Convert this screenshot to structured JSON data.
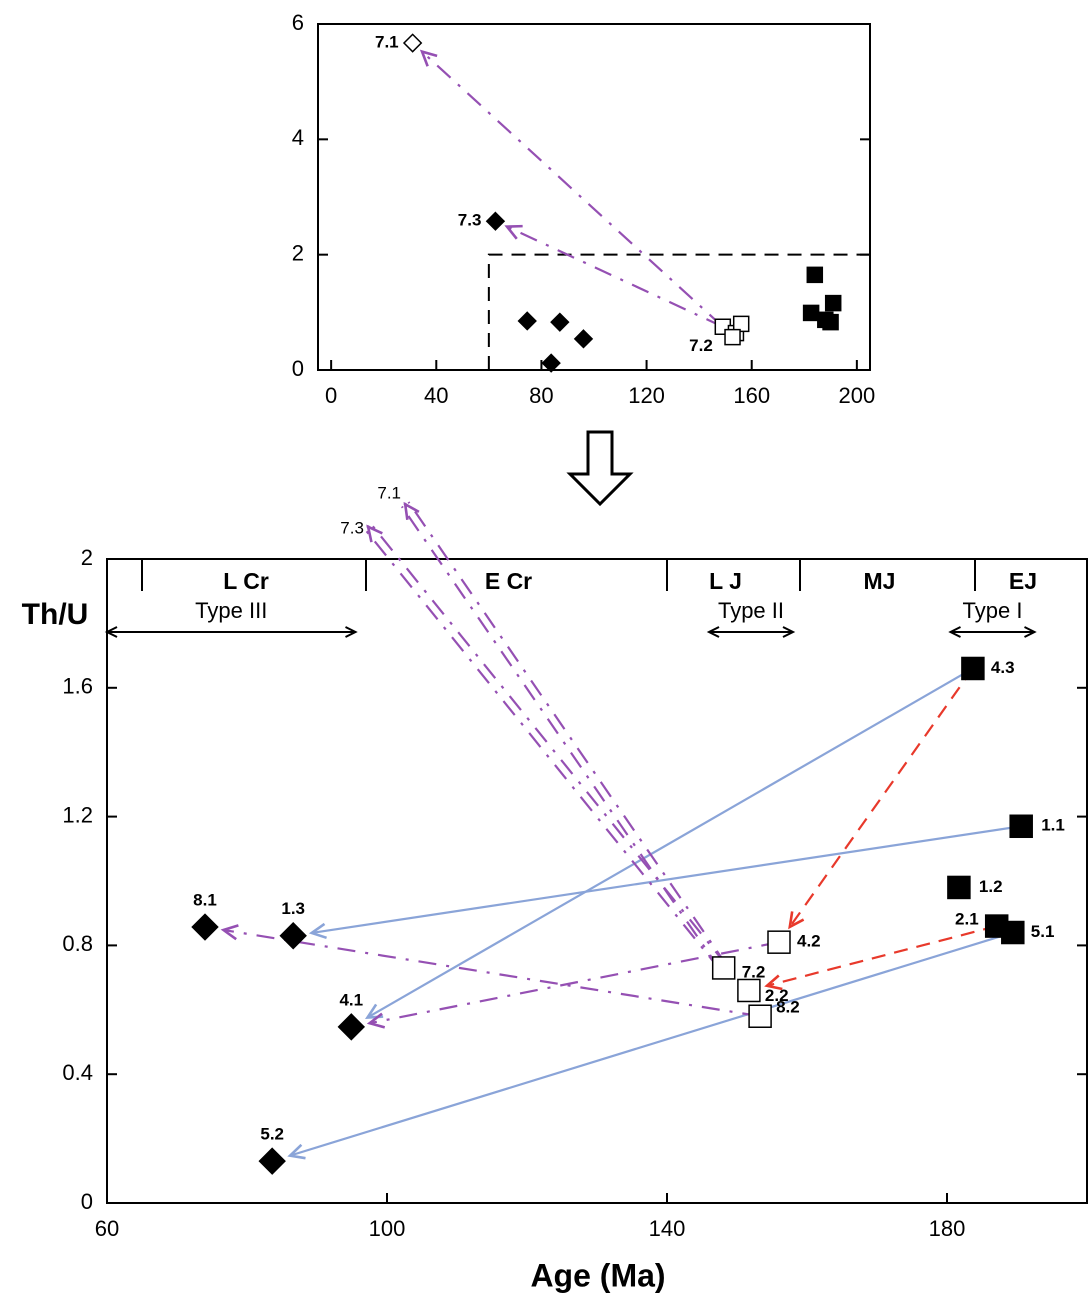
{
  "chart_data": [
    {
      "type": "scatter",
      "xlim": [
        -5,
        205
      ],
      "ylim": [
        0,
        6
      ],
      "xticks": [
        0,
        40,
        80,
        120,
        160,
        200
      ],
      "yticks": [
        0,
        2,
        4,
        6
      ],
      "region": {
        "x": 60,
        "y": 2
      },
      "series": [
        {
          "marker": "diamond",
          "filled": true,
          "x": [
            74.6,
            87,
            96,
            83.7,
            62.5
          ],
          "y": [
            0.85,
            0.83,
            0.54,
            0.12,
            2.58
          ],
          "labels": [
            null,
            null,
            null,
            null,
            "7.3"
          ]
        },
        {
          "marker": "diamond",
          "filled": false,
          "x": [
            31
          ],
          "y": [
            5.67
          ],
          "labels": [
            "7.1"
          ]
        },
        {
          "marker": "square",
          "filled": false,
          "x": [
            149,
            154,
            156,
            152.7
          ],
          "y": [
            0.75,
            0.64,
            0.8,
            0.57
          ],
          "labels": [
            "7.2",
            null,
            null,
            null
          ]
        },
        {
          "marker": "square",
          "filled": true,
          "x": [
            184,
            182.6,
            191,
            188,
            190
          ],
          "y": [
            1.65,
            0.99,
            1.16,
            0.87,
            0.83
          ],
          "labels": [
            null,
            null,
            null,
            null,
            null
          ]
        }
      ]
    },
    {
      "type": "scatter",
      "x_label": "Age (Ma)",
      "y_label": "Th/U",
      "xlim": [
        60,
        200
      ],
      "ylim": [
        0,
        2
      ],
      "xticks": [
        60,
        100,
        140,
        180
      ],
      "yticks": [
        0,
        0.4,
        0.8,
        1.2,
        1.6,
        2
      ],
      "periods": [
        {
          "label": "L Cr",
          "start": 65,
          "end": 97
        },
        {
          "label": "E Cr",
          "start": 97,
          "end": 140
        },
        {
          "label": "L J",
          "start": 140,
          "end": 159
        },
        {
          "label": "MJ",
          "start": 159,
          "end": 184
        },
        {
          "label": "EJ",
          "start": 184,
          "end": 200
        }
      ],
      "types": [
        {
          "label": "Type III",
          "start": 60,
          "end": 95.5
        },
        {
          "label": "Type II",
          "start": 146,
          "end": 158
        },
        {
          "label": "Type I",
          "start": 180.5,
          "end": 192.5
        }
      ],
      "series": [
        {
          "marker": "diamond",
          "filled": true,
          "x": [
            74,
            86.6,
            94.9,
            83.6
          ],
          "y": [
            0.857,
            0.83,
            0.547,
            0.13
          ],
          "labels": [
            "8.1",
            "1.3",
            "4.1",
            "5.2"
          ]
        },
        {
          "marker": "square",
          "filled": true,
          "x": [
            183.7,
            190.6,
            181.7,
            187.1,
            189.4
          ],
          "y": [
            1.66,
            1.17,
            0.98,
            0.86,
            0.84
          ],
          "labels": [
            "4.3",
            "1.1",
            "1.2",
            "2.1",
            "5.1"
          ]
        },
        {
          "marker": "square",
          "filled": false,
          "x": [
            156,
            148.1,
            151.7,
            153.3
          ],
          "y": [
            0.81,
            0.73,
            0.66,
            0.58
          ],
          "labels": [
            "4.2",
            "7.2",
            "2.2",
            "8.2"
          ]
        },
        {
          "marker": "none",
          "filled": false,
          "x": [
            102.6,
            97.3
          ],
          "y": [
            2.17,
            2.1
          ],
          "labels": [
            "7.1",
            "7.3"
          ]
        }
      ]
    }
  ]
}
